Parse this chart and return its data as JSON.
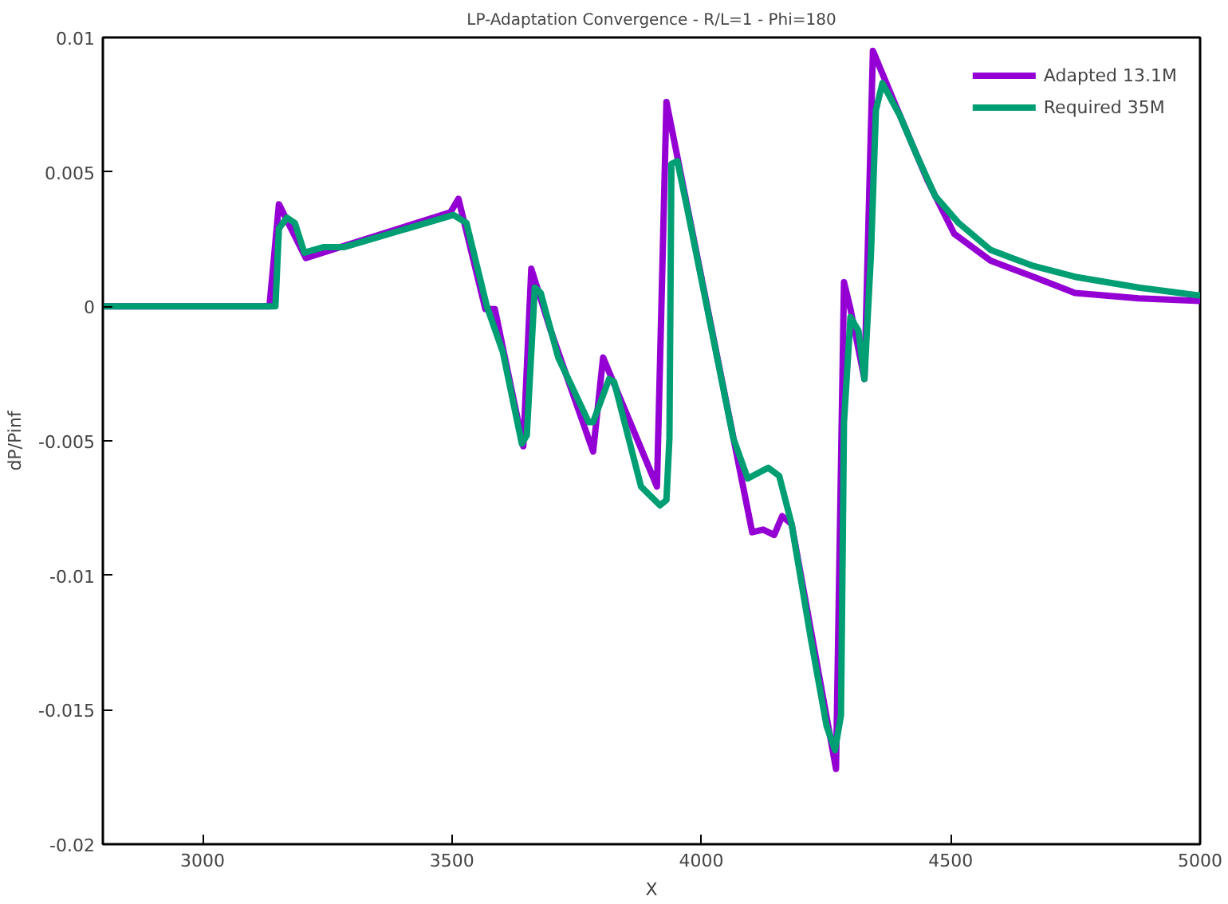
{
  "chart_data": {
    "type": "line",
    "title": "LP-Adaptation Convergence - R/L=1 - Phi=180",
    "xlabel": "X",
    "ylabel": "dP/Pinf",
    "xlim": [
      2800,
      5000
    ],
    "ylim": [
      -0.02,
      0.01
    ],
    "xticks": [
      3000,
      3500,
      4000,
      4500,
      5000
    ],
    "yticks": [
      -0.02,
      -0.015,
      -0.01,
      -0.005,
      0,
      0.005,
      0.01
    ],
    "grid": false,
    "legend": "top right",
    "marker": "none",
    "line_style": "solid",
    "series": [
      {
        "name": "Adapted 13.1M",
        "color": "#9400d3",
        "x": [
          2800,
          3134,
          3153,
          3207,
          3497,
          3513,
          3567,
          3586,
          3643,
          3659,
          3698,
          3783,
          3803,
          3911,
          3930,
          4102,
          4124,
          4146,
          4162,
          4181,
          4270,
          4286,
          4299,
          4327,
          4344,
          4389,
          4453,
          4507,
          4580,
          4666,
          4749,
          4877,
          5000
        ],
        "values": [
          0,
          0,
          0.0038,
          0.0018,
          0.0035,
          0.004,
          -0.0001,
          -0.0001,
          -0.0052,
          0.0014,
          -0.0009,
          -0.0054,
          -0.0019,
          -0.0067,
          0.0076,
          -0.0084,
          -0.0083,
          -0.0085,
          -0.0078,
          -0.0081,
          -0.0172,
          0.0009,
          -0.0001,
          -0.0027,
          0.0095,
          0.0075,
          0.0047,
          0.0027,
          0.0017,
          0.0011,
          0.0005,
          0.0003,
          0.0002
        ]
      },
      {
        "name": "Required 35M",
        "color": "#009e73",
        "x": [
          2800,
          3146,
          3153,
          3169,
          3185,
          3204,
          3242,
          3283,
          3503,
          3529,
          3570,
          3602,
          3640,
          3650,
          3666,
          3678,
          3713,
          3774,
          3783,
          3815,
          3825,
          3879,
          3917,
          3930,
          3936,
          3940,
          3952,
          3971,
          4064,
          4093,
          4134,
          4156,
          4181,
          4219,
          4251,
          4268,
          4280,
          4286,
          4299,
          4315,
          4327,
          4340,
          4350,
          4363,
          4398,
          4430,
          4469,
          4516,
          4580,
          4666,
          4749,
          4877,
          5000
        ],
        "values": [
          0,
          0,
          0.0029,
          0.0033,
          0.0031,
          0.002,
          0.0022,
          0.0022,
          0.0034,
          0.0031,
          0,
          -0.0017,
          -0.0051,
          -0.0048,
          0.0007,
          0.0005,
          -0.0019,
          -0.0043,
          -0.0043,
          -0.0027,
          -0.0028,
          -0.0067,
          -0.0074,
          -0.0072,
          -0.0049,
          0.0053,
          0.0054,
          0.0037,
          -0.0049,
          -0.0064,
          -0.006,
          -0.0063,
          -0.0081,
          -0.0123,
          -0.0156,
          -0.0165,
          -0.0152,
          -0.0043,
          -0.0004,
          -0.0009,
          -0.0027,
          0.0019,
          0.0073,
          0.0083,
          0.0071,
          0.0057,
          0.0041,
          0.0031,
          0.0021,
          0.0015,
          0.0011,
          0.0007,
          0.0004
        ]
      }
    ]
  }
}
